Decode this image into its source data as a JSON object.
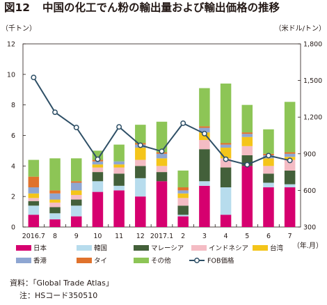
{
  "figure": {
    "number": "図12",
    "title": "中国の化工でん粉の輸出量および輸出価格の推移",
    "left_unit": "（千トン）",
    "right_unit": "（米ドル/トン）",
    "x_unit": "（年.月）",
    "source": "資料：「Global Trade Atlas」",
    "note": "注：HSコード350510"
  },
  "chart_data": {
    "type": "bar",
    "stacked": true,
    "categories": [
      "2016.7",
      "8",
      "9",
      "10",
      "11",
      "12",
      "2017.1",
      "2",
      "3",
      "4",
      "5",
      "6",
      "7"
    ],
    "ylim": [
      0,
      12
    ],
    "yticks": [
      0,
      2,
      4,
      6,
      8,
      10,
      12
    ],
    "y2lim": [
      300,
      1800
    ],
    "y2ticks": [
      "300",
      "600",
      "900",
      "1,200",
      "1,500",
      "1,800"
    ],
    "y2tick_values": [
      300,
      600,
      900,
      1200,
      1500,
      1800
    ],
    "grid": false,
    "legend_position": "bottom",
    "series": [
      {
        "name": "日本",
        "color": "#d6006f",
        "values": [
          0.8,
          0.5,
          0.7,
          2.3,
          2.4,
          2.0,
          3.0,
          0.7,
          2.7,
          0.8,
          4.0,
          2.6,
          2.6
        ]
      },
      {
        "name": "韓国",
        "color": "#b7dced",
        "values": [
          0.6,
          0.4,
          0.7,
          0.7,
          0.3,
          1.2,
          0.0,
          0.1,
          0.3,
          1.8,
          0.0,
          0.3,
          0.2
        ]
      },
      {
        "name": "マレーシア",
        "color": "#43603a",
        "values": [
          0.3,
          0.4,
          0.4,
          0.6,
          0.8,
          0.8,
          0.6,
          0.6,
          2.1,
          1.3,
          0.7,
          0.6,
          0.9
        ]
      },
      {
        "name": "インドネシア",
        "color": "#f4bcc4",
        "values": [
          0.2,
          0.3,
          0.3,
          0.3,
          0.4,
          0.4,
          0.4,
          0.5,
          0.6,
          0.6,
          0.6,
          0.5,
          0.7
        ]
      },
      {
        "name": "台湾",
        "color": "#f4c51a",
        "values": [
          0.3,
          0.2,
          0.3,
          0.2,
          0.2,
          0.8,
          0.5,
          0.3,
          0.5,
          0.7,
          0.6,
          0.5,
          0.2
        ]
      },
      {
        "name": "香港",
        "color": "#8ea6d2",
        "values": [
          0.4,
          0.4,
          0.5,
          0.2,
          0.2,
          0.2,
          0.3,
          0.2,
          0.3,
          0.2,
          0.2,
          0.2,
          0.2
        ]
      },
      {
        "name": "タイ",
        "color": "#e0722c",
        "values": [
          0.7,
          0.2,
          0.1,
          0.1,
          0.0,
          0.1,
          0.1,
          0.2,
          0.1,
          0.1,
          0.1,
          0.1,
          0.1
        ]
      },
      {
        "name": "その他",
        "color": "#8dc556",
        "values": [
          1.1,
          2.1,
          1.5,
          0.6,
          1.1,
          1.2,
          2.0,
          1.1,
          2.5,
          3.9,
          1.8,
          1.6,
          3.3
        ]
      }
    ],
    "line_series": {
      "name": "FOB価格",
      "color": "#2e4f66",
      "axis": "right",
      "values": [
        1525,
        1240,
        1115,
        855,
        1120,
        970,
        920,
        1150,
        1065,
        855,
        810,
        885,
        845
      ]
    }
  }
}
